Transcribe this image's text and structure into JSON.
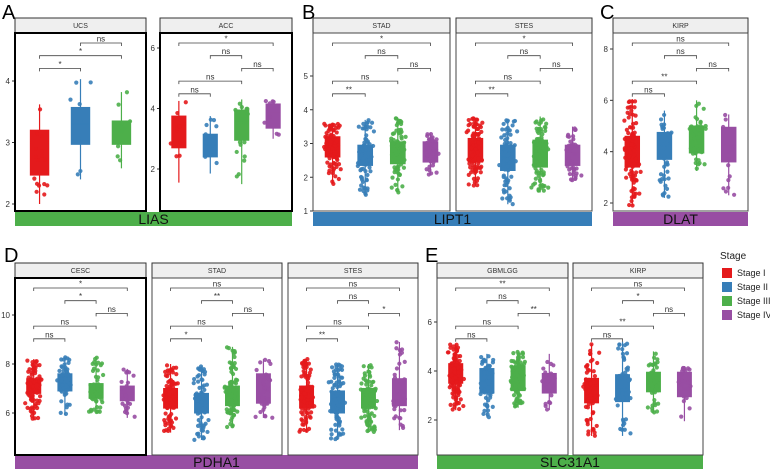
{
  "stage_legend": {
    "title": "Stage",
    "items": [
      {
        "label": "Stage I",
        "color": "#E41A1C"
      },
      {
        "label": "Stage II",
        "color": "#377EB8"
      },
      {
        "label": "Stage III",
        "color": "#4DAF4A"
      },
      {
        "label": "Stage IV",
        "color": "#984EA3"
      }
    ]
  },
  "panels": [
    {
      "letter": "A",
      "gene": "LIAS",
      "gene_color": "#4DAF4A"
    },
    {
      "letter": "B",
      "gene": "LIPT1",
      "gene_color": "#377EB8"
    },
    {
      "letter": "C",
      "gene": "DLAT",
      "gene_color": "#984EA3"
    },
    {
      "letter": "D",
      "gene": "PDHA1",
      "gene_color": "#984EA3"
    },
    {
      "letter": "E",
      "gene": "SLC31A1",
      "gene_color": "#4DAF4A"
    }
  ],
  "chart_data": [
    {
      "type": "box",
      "panel": "A",
      "gene": "LIAS",
      "facet": "UCS",
      "stages": [
        0,
        1,
        2
      ],
      "yticks": [
        2,
        3,
        4
      ],
      "ylim": [
        1.9,
        4.6
      ],
      "boxes": [
        {
          "q1": 2.47,
          "median": 3.0,
          "q3": 3.2,
          "low": 2.0,
          "high": 3.62,
          "n": 16
        },
        {
          "q1": 2.97,
          "median": 3.3,
          "q3": 3.57,
          "low": 2.4,
          "high": 4.03,
          "n": 8
        },
        {
          "q1": 2.97,
          "median": 3.15,
          "q3": 3.35,
          "low": 2.58,
          "high": 3.82,
          "n": 10
        }
      ],
      "comparisons": [
        {
          "from": 0,
          "to": 1,
          "label": "*"
        },
        {
          "from": 0,
          "to": 2,
          "label": "*"
        },
        {
          "from": 1,
          "to": 2,
          "label": "ns"
        }
      ]
    },
    {
      "type": "box",
      "panel": "A",
      "gene": "LIAS",
      "facet": "ACC",
      "stages": [
        0,
        1,
        2,
        3
      ],
      "yticks": [
        2,
        4,
        6
      ],
      "ylim": [
        0.7,
        6.6
      ],
      "boxes": [
        {
          "q1": 2.7,
          "median": 3.0,
          "q3": 3.75,
          "low": 1.55,
          "high": 4.25,
          "n": 12
        },
        {
          "q1": 2.4,
          "median": 2.8,
          "q3": 3.15,
          "low": 1.85,
          "high": 3.75,
          "n": 10
        },
        {
          "q1": 2.95,
          "median": 3.6,
          "q3": 3.95,
          "low": 1.5,
          "high": 4.3,
          "n": 18
        },
        {
          "q1": 3.35,
          "median": 3.9,
          "q3": 4.15,
          "low": 3.0,
          "high": 4.25,
          "n": 8
        }
      ],
      "comparisons": [
        {
          "from": 0,
          "to": 1,
          "label": "ns"
        },
        {
          "from": 0,
          "to": 2,
          "label": "ns"
        },
        {
          "from": 2,
          "to": 3,
          "label": "ns"
        },
        {
          "from": 1,
          "to": 2,
          "label": "ns"
        },
        {
          "from": 0,
          "to": 3,
          "label": "*"
        }
      ]
    },
    {
      "type": "box",
      "panel": "B",
      "gene": "LIPT1",
      "facet": "STAD",
      "stages": [
        0,
        1,
        2,
        3
      ],
      "yticks": [
        1,
        2,
        3,
        4,
        5
      ],
      "ylim": [
        1,
        6.2
      ],
      "boxes": [
        {
          "q1": 2.6,
          "median": 2.85,
          "q3": 3.2,
          "low": 1.8,
          "high": 3.6,
          "n": 90
        },
        {
          "q1": 2.35,
          "median": 2.7,
          "q3": 2.95,
          "low": 1.45,
          "high": 3.7,
          "n": 80
        },
        {
          "q1": 2.4,
          "median": 2.75,
          "q3": 3.05,
          "low": 1.55,
          "high": 3.75,
          "n": 90
        },
        {
          "q1": 2.45,
          "median": 2.75,
          "q3": 3.05,
          "low": 2.05,
          "high": 3.3,
          "n": 40
        }
      ],
      "comparisons": [
        {
          "from": 0,
          "to": 1,
          "label": "**"
        },
        {
          "from": 0,
          "to": 2,
          "label": "ns"
        },
        {
          "from": 2,
          "to": 3,
          "label": "ns"
        },
        {
          "from": 1,
          "to": 2,
          "label": "ns"
        },
        {
          "from": 0,
          "to": 3,
          "label": "*"
        }
      ]
    },
    {
      "type": "box",
      "panel": "B",
      "gene": "LIPT1",
      "facet": "STES",
      "stages": [
        0,
        1,
        2,
        3
      ],
      "yticks": [],
      "ylim": [
        1,
        6.2
      ],
      "boxes": [
        {
          "q1": 2.45,
          "median": 2.8,
          "q3": 3.15,
          "low": 1.75,
          "high": 3.75,
          "n": 110
        },
        {
          "q1": 2.2,
          "median": 2.6,
          "q3": 2.95,
          "low": 1.2,
          "high": 3.7,
          "n": 100
        },
        {
          "q1": 2.3,
          "median": 2.7,
          "q3": 3.1,
          "low": 1.55,
          "high": 3.8,
          "n": 100
        },
        {
          "q1": 2.35,
          "median": 2.7,
          "q3": 2.95,
          "low": 1.9,
          "high": 3.5,
          "n": 45
        }
      ],
      "comparisons": [
        {
          "from": 0,
          "to": 1,
          "label": "**"
        },
        {
          "from": 0,
          "to": 2,
          "label": "ns"
        },
        {
          "from": 2,
          "to": 3,
          "label": "ns"
        },
        {
          "from": 1,
          "to": 2,
          "label": "ns"
        },
        {
          "from": 0,
          "to": 3,
          "label": "*"
        }
      ]
    },
    {
      "type": "box",
      "panel": "C",
      "gene": "DLAT",
      "facet": "KIRP",
      "stages": [
        0,
        1,
        2,
        3
      ],
      "yticks": [
        2,
        4,
        6,
        8
      ],
      "ylim": [
        1.6,
        8.6
      ],
      "boxes": [
        {
          "q1": 3.4,
          "median": 4.0,
          "q3": 4.6,
          "low": 1.9,
          "high": 6.05,
          "n": 100
        },
        {
          "q1": 3.7,
          "median": 4.2,
          "q3": 4.75,
          "low": 2.2,
          "high": 5.6,
          "n": 40
        },
        {
          "q1": 3.95,
          "median": 4.5,
          "q3": 5.0,
          "low": 3.25,
          "high": 6.0,
          "n": 50
        },
        {
          "q1": 3.6,
          "median": 4.2,
          "q3": 4.95,
          "low": 2.3,
          "high": 5.45,
          "n": 14
        }
      ],
      "comparisons": [
        {
          "from": 0,
          "to": 1,
          "label": "ns"
        },
        {
          "from": 0,
          "to": 2,
          "label": "**"
        },
        {
          "from": 2,
          "to": 3,
          "label": "ns"
        },
        {
          "from": 1,
          "to": 2,
          "label": "ns"
        },
        {
          "from": 0,
          "to": 3,
          "label": "ns"
        }
      ]
    },
    {
      "type": "box",
      "panel": "D",
      "gene": "PDHA1",
      "facet": "CESC",
      "stages": [
        0,
        1,
        2,
        3
      ],
      "yticks": [
        6,
        8,
        10
      ],
      "ylim": [
        4.6,
        11.4
      ],
      "boxes": [
        {
          "q1": 6.8,
          "median": 7.1,
          "q3": 7.4,
          "low": 5.7,
          "high": 8.2,
          "n": 110
        },
        {
          "q1": 6.9,
          "median": 7.2,
          "q3": 7.6,
          "low": 5.9,
          "high": 8.3,
          "n": 60
        },
        {
          "q1": 6.6,
          "median": 6.9,
          "q3": 7.2,
          "low": 6.0,
          "high": 8.3,
          "n": 70
        },
        {
          "q1": 6.5,
          "median": 6.8,
          "q3": 7.1,
          "low": 5.8,
          "high": 7.8,
          "n": 25
        }
      ],
      "comparisons": [
        {
          "from": 0,
          "to": 1,
          "label": "ns"
        },
        {
          "from": 0,
          "to": 2,
          "label": "ns"
        },
        {
          "from": 2,
          "to": 3,
          "label": "ns"
        },
        {
          "from": 1,
          "to": 2,
          "label": "*"
        },
        {
          "from": 0,
          "to": 3,
          "label": "*"
        }
      ]
    },
    {
      "type": "box",
      "panel": "D",
      "gene": "PDHA1",
      "facet": "STAD",
      "stages": [
        0,
        1,
        2,
        3
      ],
      "yticks": [],
      "ylim": [
        4.6,
        11.4
      ],
      "boxes": [
        {
          "q1": 6.2,
          "median": 6.6,
          "q3": 7.0,
          "low": 5.2,
          "high": 8.0,
          "n": 90
        },
        {
          "q1": 6.0,
          "median": 6.4,
          "q3": 6.8,
          "low": 4.9,
          "high": 7.9,
          "n": 90
        },
        {
          "q1": 6.3,
          "median": 6.7,
          "q3": 7.1,
          "low": 5.4,
          "high": 8.7,
          "n": 90
        },
        {
          "q1": 6.4,
          "median": 7.0,
          "q3": 7.6,
          "low": 5.8,
          "high": 8.2,
          "n": 40
        }
      ],
      "comparisons": [
        {
          "from": 0,
          "to": 1,
          "label": "*"
        },
        {
          "from": 0,
          "to": 2,
          "label": "ns"
        },
        {
          "from": 2,
          "to": 3,
          "label": "ns"
        },
        {
          "from": 1,
          "to": 2,
          "label": "**"
        },
        {
          "from": 0,
          "to": 3,
          "label": "ns"
        }
      ]
    },
    {
      "type": "box",
      "panel": "D",
      "gene": "PDHA1",
      "facet": "STES",
      "stages": [
        0,
        1,
        2,
        3
      ],
      "yticks": [],
      "ylim": [
        4.6,
        11.4
      ],
      "boxes": [
        {
          "q1": 6.2,
          "median": 6.6,
          "q3": 7.1,
          "low": 5.2,
          "high": 8.2,
          "n": 110
        },
        {
          "q1": 6.0,
          "median": 6.4,
          "q3": 6.9,
          "low": 4.9,
          "high": 8.0,
          "n": 110
        },
        {
          "q1": 6.2,
          "median": 6.6,
          "q3": 7.0,
          "low": 5.2,
          "high": 8.0,
          "n": 110
        },
        {
          "q1": 6.3,
          "median": 6.9,
          "q3": 7.4,
          "low": 5.3,
          "high": 8.9,
          "n": 45
        }
      ],
      "comparisons": [
        {
          "from": 0,
          "to": 1,
          "label": "**"
        },
        {
          "from": 0,
          "to": 2,
          "label": "ns"
        },
        {
          "from": 2,
          "to": 3,
          "label": "*"
        },
        {
          "from": 1,
          "to": 2,
          "label": "ns"
        },
        {
          "from": 0,
          "to": 3,
          "label": "ns"
        }
      ]
    },
    {
      "type": "box",
      "panel": "E",
      "gene": "SLC31A1",
      "facet": "GBMLGG",
      "stages": [
        0,
        1,
        2,
        3
      ],
      "yticks": [
        2,
        4,
        6
      ],
      "ylim": [
        0.7,
        7.8
      ],
      "boxes": [
        {
          "q1": 3.5,
          "median": 3.9,
          "q3": 4.3,
          "low": 2.4,
          "high": 5.1,
          "n": 120
        },
        {
          "q1": 3.1,
          "median": 3.6,
          "q3": 4.1,
          "low": 2.1,
          "high": 4.7,
          "n": 60
        },
        {
          "q1": 3.2,
          "median": 3.7,
          "q3": 4.2,
          "low": 2.5,
          "high": 4.8,
          "n": 100
        },
        {
          "q1": 3.1,
          "median": 3.5,
          "q3": 3.9,
          "low": 2.4,
          "high": 4.7,
          "n": 30
        }
      ],
      "comparisons": [
        {
          "from": 0,
          "to": 1,
          "label": "ns"
        },
        {
          "from": 0,
          "to": 2,
          "label": "ns"
        },
        {
          "from": 2,
          "to": 3,
          "label": "**"
        },
        {
          "from": 1,
          "to": 2,
          "label": "ns"
        },
        {
          "from": 0,
          "to": 3,
          "label": "**"
        }
      ]
    },
    {
      "type": "box",
      "panel": "E",
      "gene": "SLC31A1",
      "facet": "KIRP",
      "stages": [
        0,
        1,
        2,
        3
      ],
      "yticks": [],
      "ylim": [
        0.7,
        7.8
      ],
      "boxes": [
        {
          "q1": 2.7,
          "median": 3.1,
          "q3": 3.7,
          "low": 1.35,
          "high": 5.1,
          "n": 80
        },
        {
          "q1": 2.75,
          "median": 3.3,
          "q3": 3.85,
          "low": 1.35,
          "high": 5.2,
          "n": 50
        },
        {
          "q1": 3.15,
          "median": 3.6,
          "q3": 3.95,
          "low": 2.3,
          "high": 4.8,
          "n": 45
        },
        {
          "q1": 2.95,
          "median": 3.4,
          "q3": 3.95,
          "low": 1.95,
          "high": 4.2,
          "n": 25
        }
      ],
      "comparisons": [
        {
          "from": 0,
          "to": 1,
          "label": "ns"
        },
        {
          "from": 0,
          "to": 2,
          "label": "**"
        },
        {
          "from": 2,
          "to": 3,
          "label": "ns"
        },
        {
          "from": 1,
          "to": 2,
          "label": "*"
        },
        {
          "from": 0,
          "to": 3,
          "label": "ns"
        }
      ]
    }
  ]
}
